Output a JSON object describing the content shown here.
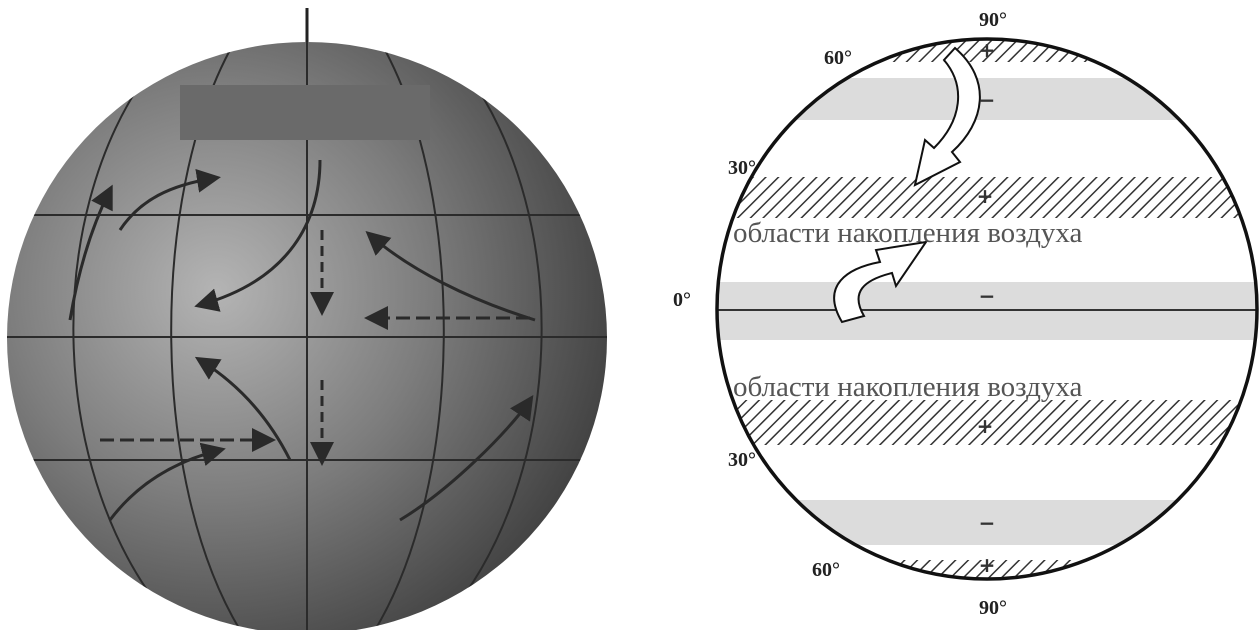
{
  "latitude_labels": [
    "90°",
    "60°",
    "30°",
    "0°",
    "30°",
    "60°",
    "90°"
  ],
  "signs": [
    "+",
    "−",
    "+",
    "−",
    "+",
    "−",
    "+"
  ],
  "captions": [
    "области накопления воздуха",
    "области накопления воздуха"
  ]
}
